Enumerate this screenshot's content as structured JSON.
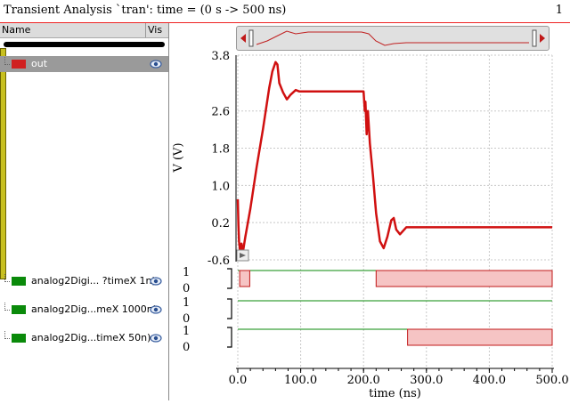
{
  "window": {
    "title": "Transient Analysis `tran': time = (0 s -> 500 ns)",
    "page_number": "1",
    "frame_color": "#e22222"
  },
  "panel": {
    "header_name": "Name",
    "header_vis": "Vis",
    "signals": [
      {
        "label": "out",
        "color": "#d02020",
        "selected": true,
        "icon": "eye-icon"
      },
      {
        "label": "analog2Digi... ?timeX 1n)",
        "color": "#0a8a0a",
        "selected": false,
        "icon": "eye-icon"
      },
      {
        "label": "analog2Dig...meX 1000n)",
        "color": "#0a8a0a",
        "selected": false,
        "icon": "eye-icon"
      },
      {
        "label": "analog2Dig...timeX 50n)",
        "color": "#0a8a0a",
        "selected": false,
        "icon": "eye-icon"
      }
    ]
  },
  "chart_data": {
    "type": "line",
    "xlabel": "time (ns)",
    "ylabel": "V (V)",
    "xlim": [
      0,
      500
    ],
    "ylim": [
      -0.6,
      3.8
    ],
    "x_ticks": [
      "0.0",
      "100.0",
      "200.0",
      "300.0",
      "400.0",
      "500.0"
    ],
    "y_ticks": [
      "3.8",
      "2.6",
      "1.8",
      "1.0",
      "0.2",
      "-0.6"
    ],
    "grid": true,
    "analog_series": {
      "name": "out",
      "color": "#d01010",
      "points": [
        [
          0,
          0.7
        ],
        [
          1,
          0.15
        ],
        [
          2,
          -0.2
        ],
        [
          4,
          -0.45
        ],
        [
          6,
          -0.25
        ],
        [
          8,
          -0.45
        ],
        [
          12,
          -0.1
        ],
        [
          20,
          0.5
        ],
        [
          30,
          1.4
        ],
        [
          40,
          2.2
        ],
        [
          50,
          3.1
        ],
        [
          55,
          3.45
        ],
        [
          60,
          3.65
        ],
        [
          63,
          3.6
        ],
        [
          66,
          3.2
        ],
        [
          72,
          3.0
        ],
        [
          78,
          2.85
        ],
        [
          84,
          2.95
        ],
        [
          92,
          3.05
        ],
        [
          98,
          3.02
        ],
        [
          104,
          3.02
        ],
        [
          200,
          3.02
        ],
        [
          202,
          2.6
        ],
        [
          203,
          2.8
        ],
        [
          205,
          2.1
        ],
        [
          207,
          2.6
        ],
        [
          210,
          1.9
        ],
        [
          215,
          1.2
        ],
        [
          220,
          0.4
        ],
        [
          226,
          -0.2
        ],
        [
          232,
          -0.35
        ],
        [
          238,
          -0.1
        ],
        [
          244,
          0.25
        ],
        [
          248,
          0.3
        ],
        [
          252,
          0.05
        ],
        [
          258,
          -0.05
        ],
        [
          268,
          0.1
        ],
        [
          500,
          0.1
        ]
      ]
    },
    "digital_series": [
      {
        "name": "analog2Digi... ?timeX 1n)",
        "high_label": "1",
        "low_label": "0",
        "high_intervals": [
          [
            3,
            19
          ],
          [
            220,
            500
          ]
        ]
      },
      {
        "name": "analog2Dig...meX 1000n)",
        "high_label": "1",
        "low_label": "0",
        "high_intervals": []
      },
      {
        "name": "analog2Dig...timeX 50n)",
        "high_label": "1",
        "low_label": "0",
        "high_intervals": [
          [
            270,
            500
          ]
        ]
      }
    ]
  }
}
